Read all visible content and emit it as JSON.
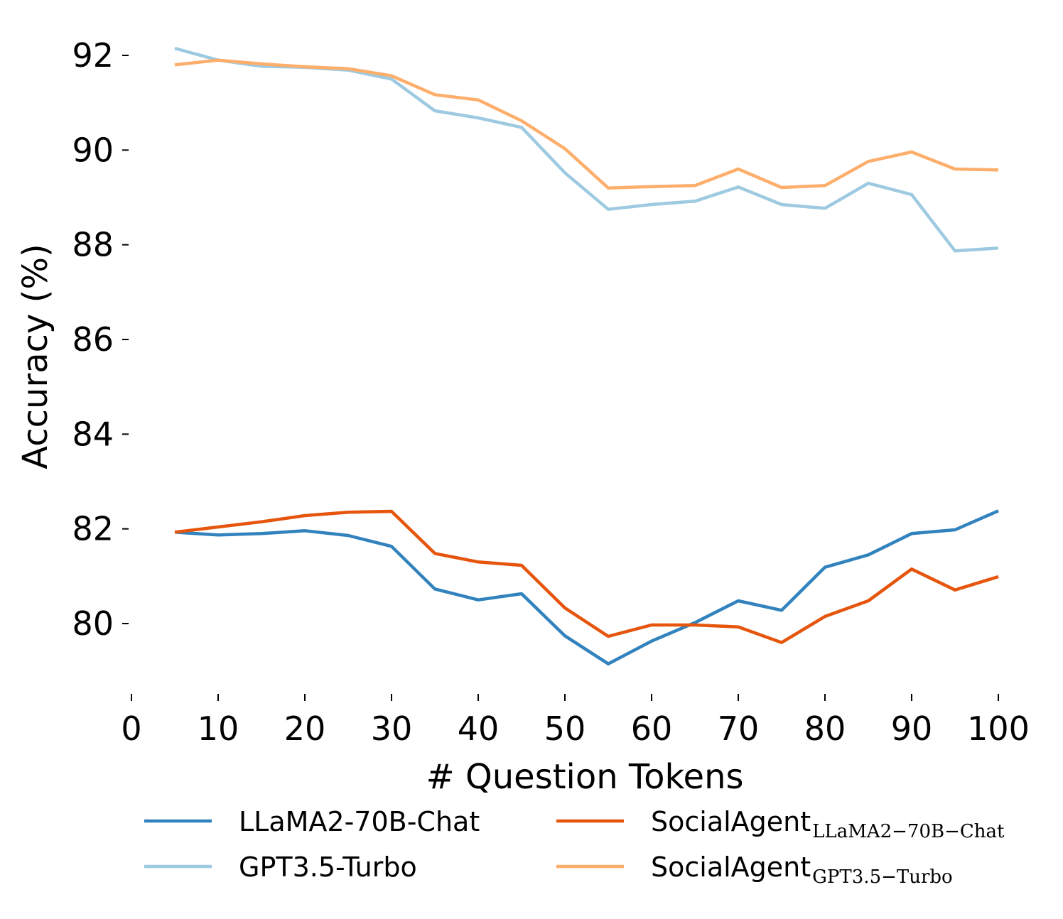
{
  "chart_data": {
    "type": "line",
    "title": "",
    "xlabel": "# Question Tokens",
    "ylabel": "Accuracy (%)",
    "xlim": [
      0,
      100
    ],
    "ylim": [
      78.6,
      92.6
    ],
    "x_ticks": [
      "0",
      "10",
      "20",
      "30",
      "40",
      "50",
      "60",
      "70",
      "80",
      "90",
      "100"
    ],
    "y_ticks": [
      "80",
      "82",
      "84",
      "86",
      "88",
      "90",
      "92"
    ],
    "grid": false,
    "legend_position": "bottom",
    "x": [
      5,
      10,
      15,
      20,
      25,
      30,
      35,
      40,
      45,
      50,
      55,
      60,
      65,
      70,
      75,
      80,
      85,
      90,
      95,
      100
    ],
    "series": [
      {
        "name": "LLaMA2-70B-Chat",
        "name_subscript": "",
        "color": "#3182bd",
        "values": [
          81.93,
          81.87,
          81.9,
          81.96,
          81.86,
          81.63,
          80.73,
          80.5,
          80.63,
          79.74,
          79.15,
          79.63,
          80.02,
          80.48,
          80.28,
          81.19,
          81.45,
          81.9,
          81.98,
          82.38
        ]
      },
      {
        "name": "GPT3.5-Turbo",
        "name_subscript": "",
        "color": "#9ecae1",
        "values": [
          92.15,
          91.9,
          91.77,
          91.75,
          91.69,
          91.5,
          90.83,
          90.68,
          90.48,
          89.52,
          88.75,
          88.85,
          88.92,
          89.22,
          88.85,
          88.77,
          89.3,
          89.06,
          87.87,
          87.93
        ]
      },
      {
        "name": "SocialAgent",
        "name_subscript": "LLaMA2−70B−Chat",
        "color": "#e6550d",
        "values": [
          81.93,
          82.04,
          82.15,
          82.28,
          82.35,
          82.37,
          81.48,
          81.3,
          81.23,
          80.33,
          79.73,
          79.97,
          79.97,
          79.93,
          79.6,
          80.15,
          80.48,
          81.15,
          80.71,
          80.99
        ]
      },
      {
        "name": "SocialAgent",
        "name_subscript": "GPT3.5−Turbo",
        "color": "#fdae6b",
        "values": [
          91.8,
          91.9,
          91.82,
          91.76,
          91.72,
          91.57,
          91.17,
          91.06,
          90.62,
          90.03,
          89.2,
          89.23,
          89.25,
          89.6,
          89.21,
          89.25,
          89.76,
          89.96,
          89.6,
          89.58
        ]
      }
    ]
  }
}
